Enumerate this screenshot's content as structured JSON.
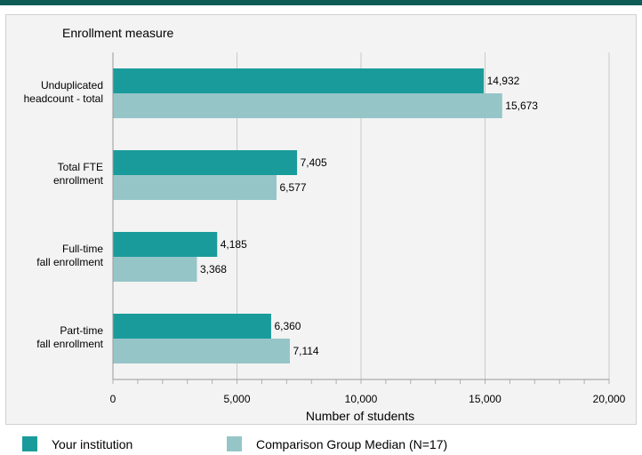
{
  "colors": {
    "top_bar": "#0f5c57",
    "series_primary": "#1a9b9b",
    "series_comparison": "#96c5c8",
    "panel_bg": "#f3f3f3",
    "grid": "#c8c8c8"
  },
  "chart_data": {
    "type": "bar",
    "orientation": "horizontal",
    "title": "",
    "ylabel": "Enrollment measure",
    "xlabel": "Number of students",
    "xlim": [
      0,
      20000
    ],
    "xticks": [
      0,
      5000,
      10000,
      15000,
      20000
    ],
    "xtick_labels": [
      "0",
      "5,000",
      "10,000",
      "15,000",
      "20,000"
    ],
    "grid": true,
    "legend_position": "bottom",
    "categories": [
      [
        "Unduplicated",
        "headcount - total"
      ],
      [
        "Total FTE",
        "enrollment"
      ],
      [
        "Full-time",
        "fall enrollment"
      ],
      [
        "Part-time",
        "fall enrollment"
      ]
    ],
    "series": [
      {
        "name": "Your institution",
        "values": [
          14932,
          7405,
          4185,
          6360
        ],
        "labels": [
          "14,932",
          "7,405",
          "4,185",
          "6,360"
        ]
      },
      {
        "name": "Comparison Group Median (N=17)",
        "values": [
          15673,
          6577,
          3368,
          7114
        ],
        "labels": [
          "15,673",
          "6,577",
          "3,368",
          "7,114"
        ]
      }
    ]
  }
}
